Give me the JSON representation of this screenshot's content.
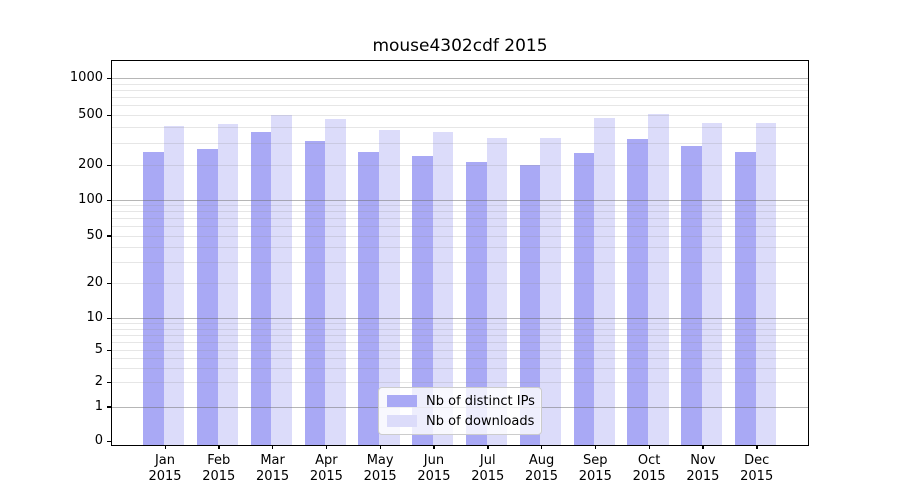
{
  "title": "mouse4302cdf 2015",
  "legend": {
    "items": [
      {
        "label": "Nb of distinct IPs",
        "color": "#a9a9f5"
      },
      {
        "label": "Nb of downloads",
        "color": "#dcdcfa"
      }
    ]
  },
  "chart_data": {
    "type": "bar",
    "title": "mouse4302cdf 2015",
    "categories": [
      "Jan",
      "Feb",
      "Mar",
      "Apr",
      "May",
      "Jun",
      "Jul",
      "Aug",
      "Sep",
      "Oct",
      "Nov",
      "Dec"
    ],
    "category_year": "2015",
    "series": [
      {
        "name": "Nb of distinct IPs",
        "color": "#a9a9f5",
        "values": [
          256,
          266,
          368,
          310,
          252,
          236,
          211,
          200,
          248,
          320,
          285,
          255
        ]
      },
      {
        "name": "Nb of downloads",
        "color": "#dcdcfa",
        "values": [
          408,
          421,
          503,
          463,
          381,
          368,
          331,
          327,
          476,
          510,
          430,
          431
        ]
      }
    ],
    "xlabel": "",
    "ylabel": "",
    "y_ticks": [
      0,
      1,
      2,
      5,
      10,
      20,
      50,
      100,
      200,
      500,
      1000
    ],
    "y_scale": "log",
    "ylim": [
      0,
      1360
    ],
    "grid": true,
    "grid_minor": true,
    "legend_position": "lower center",
    "colors": {
      "background": "#ffffff",
      "major_grid": "#b0b0b0",
      "minor_grid": "#e6e6e6",
      "axis": "#000000"
    }
  }
}
